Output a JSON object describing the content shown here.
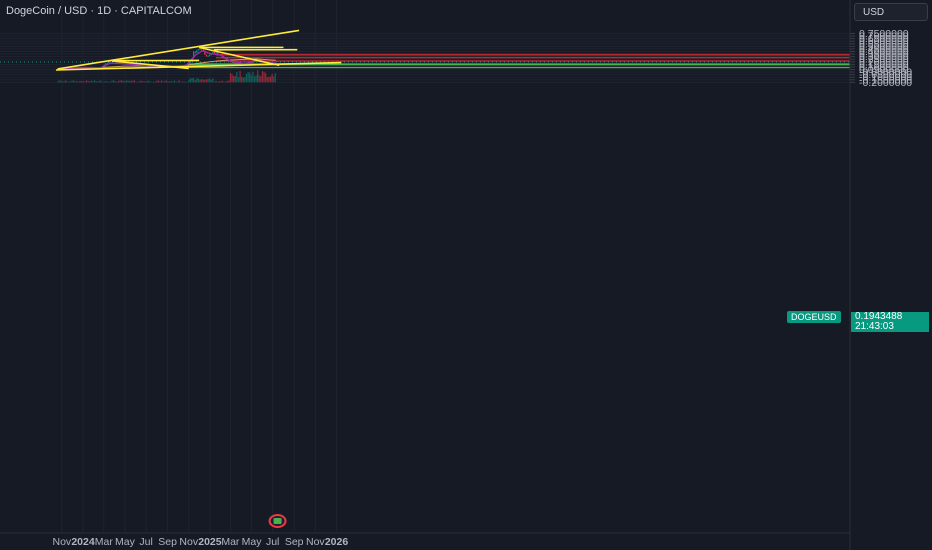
{
  "header": {
    "symbol_title": "DogeCoin / USD · 1D · CAPITALCOM",
    "currency_label": "USD"
  },
  "price_tag": {
    "symbol": "DOGEUSD",
    "price": "0.1943488",
    "countdown": "21:43:03",
    "color": "#089981"
  },
  "colors": {
    "background": "#161a25",
    "axis_text": "#b2b5be",
    "trendline": "#ffeb3b",
    "resistance_zone": "#b22833",
    "support_zone": "#4caf50",
    "candle_up": "#089981",
    "candle_down": "#f23645",
    "ma_fast": "#9c27b0",
    "ma_slow": "#c8a35a"
  },
  "chart_data": {
    "type": "candlestick",
    "title": "DogeCoin / USD · 1D · CAPITALCOM",
    "y_ticks": [
      "0.7500000",
      "0.7000000",
      "0.6500000",
      "0.6000000",
      "0.5500000",
      "0.5000000",
      "0.4500000",
      "0.4000000",
      "0.3500000",
      "0.3000000",
      "0.2500000",
      "0.2000000",
      "0.1500000",
      "0.1000000",
      "0.0500000",
      "-0.0000000",
      "-0.0500000",
      "-0.1000000",
      "-0.1500000",
      "-0.2000000"
    ],
    "y_tick_values": [
      0.75,
      0.7,
      0.65,
      0.6,
      0.55,
      0.5,
      0.45,
      0.4,
      0.35,
      0.3,
      0.25,
      0.2,
      0.15,
      0.1,
      0.05,
      0.0,
      -0.05,
      -0.1,
      -0.15,
      -0.2
    ],
    "ylim": [
      -0.205,
      0.8
    ],
    "x_ticks": [
      "Nov",
      "2024",
      "Mar",
      "May",
      "Jul",
      "Sep",
      "Nov",
      "2025",
      "Mar",
      "May",
      "Jul",
      "Sep",
      "Nov",
      "2026"
    ],
    "x_tick_dates": [
      "2023-11-01",
      "2024-01-01",
      "2024-03-01",
      "2024-05-01",
      "2024-07-01",
      "2024-09-01",
      "2024-11-01",
      "2025-01-01",
      "2025-03-01",
      "2025-05-01",
      "2025-07-01",
      "2025-09-01",
      "2025-11-01",
      "2026-01-01"
    ],
    "bold_ticks": [
      "2024",
      "2025",
      "2026"
    ],
    "price_path": [
      [
        "2023-10-20",
        0.058
      ],
      [
        "2023-11-15",
        0.075
      ],
      [
        "2023-12-10",
        0.093
      ],
      [
        "2024-01-05",
        0.082
      ],
      [
        "2024-02-05",
        0.08
      ],
      [
        "2024-02-25",
        0.095
      ],
      [
        "2024-03-05",
        0.165
      ],
      [
        "2024-03-15",
        0.205
      ],
      [
        "2024-03-28",
        0.22
      ],
      [
        "2024-04-05",
        0.215
      ],
      [
        "2024-04-20",
        0.16
      ],
      [
        "2024-05-01",
        0.155
      ],
      [
        "2024-05-25",
        0.16
      ],
      [
        "2024-06-15",
        0.13
      ],
      [
        "2024-07-05",
        0.108
      ],
      [
        "2024-07-25",
        0.135
      ],
      [
        "2024-08-10",
        0.105
      ],
      [
        "2024-09-06",
        0.097
      ],
      [
        "2024-09-25",
        0.12
      ],
      [
        "2024-10-15",
        0.118
      ],
      [
        "2024-10-30",
        0.165
      ],
      [
        "2024-11-08",
        0.23
      ],
      [
        "2024-11-15",
        0.38
      ],
      [
        "2024-11-25",
        0.42
      ],
      [
        "2024-12-05",
        0.47
      ],
      [
        "2024-12-12",
        0.43
      ],
      [
        "2024-12-20",
        0.32
      ],
      [
        "2024-12-31",
        0.32
      ],
      [
        "2025-01-10",
        0.39
      ],
      [
        "2025-01-20",
        0.38
      ],
      [
        "2025-01-30",
        0.33
      ],
      [
        "2025-02-05",
        0.28
      ],
      [
        "2025-02-15",
        0.27
      ],
      [
        "2025-02-25",
        0.21
      ],
      [
        "2025-03-10",
        0.19
      ],
      [
        "2025-03-25",
        0.175
      ],
      [
        "2025-04-07",
        0.15
      ],
      [
        "2025-04-25",
        0.175
      ],
      [
        "2025-05-05",
        0.19
      ],
      [
        "2025-05-12",
        0.245
      ],
      [
        "2025-05-25",
        0.23
      ],
      [
        "2025-06-05",
        0.195
      ],
      [
        "2025-06-20",
        0.16
      ],
      [
        "2025-06-28",
        0.16
      ],
      [
        "2025-07-07",
        0.175
      ],
      [
        "2025-07-10",
        0.194
      ]
    ],
    "ma_fast": [
      [
        "2023-10-20",
        0.06
      ],
      [
        "2024-01-01",
        0.088
      ],
      [
        "2024-02-20",
        0.085
      ],
      [
        "2024-03-20",
        0.175
      ],
      [
        "2024-05-01",
        0.16
      ],
      [
        "2024-07-01",
        0.125
      ],
      [
        "2024-09-01",
        0.108
      ],
      [
        "2024-10-25",
        0.13
      ],
      [
        "2024-11-20",
        0.33
      ],
      [
        "2024-12-10",
        0.415
      ],
      [
        "2025-01-01",
        0.36
      ],
      [
        "2025-02-01",
        0.33
      ],
      [
        "2025-03-01",
        0.215
      ],
      [
        "2025-04-10",
        0.168
      ],
      [
        "2025-05-20",
        0.22
      ],
      [
        "2025-06-20",
        0.175
      ],
      [
        "2025-07-10",
        0.18
      ]
    ],
    "ma_slow": [
      [
        "2023-11-01",
        0.068
      ],
      [
        "2024-02-01",
        0.08
      ],
      [
        "2024-05-01",
        0.115
      ],
      [
        "2024-08-01",
        0.12
      ],
      [
        "2024-10-15",
        0.118
      ],
      [
        "2024-11-20",
        0.16
      ],
      [
        "2025-01-01",
        0.2
      ],
      [
        "2025-02-15",
        0.23
      ],
      [
        "2025-04-01",
        0.245
      ],
      [
        "2025-05-15",
        0.255
      ],
      [
        "2025-06-15",
        0.24
      ],
      [
        "2025-07-10",
        0.23
      ]
    ],
    "trendlines": [
      [
        [
          "2023-10-20",
          0.06
        ],
        [
          "2025-09-15",
          0.81
        ]
      ],
      [
        [
          "2023-10-15",
          0.04
        ],
        [
          "2026-01-15",
          0.185
        ]
      ],
      [
        [
          "2024-03-25",
          0.215
        ],
        [
          "2024-11-01",
          0.07
        ]
      ],
      [
        [
          "2024-03-25",
          0.222
        ],
        [
          "2024-12-01",
          0.225
        ]
      ],
      [
        [
          "2024-12-01",
          0.478
        ],
        [
          "2025-07-20",
          0.13
        ]
      ],
      [
        [
          "2024-12-01",
          0.478
        ],
        [
          "2025-08-01",
          0.48
        ]
      ],
      [
        [
          "2025-01-12",
          0.433
        ],
        [
          "2025-09-10",
          0.435
        ]
      ]
    ],
    "resistance_zones": [
      [
        0.33,
        0.345
      ],
      [
        0.275,
        0.285
      ],
      [
        0.21,
        0.22
      ]
    ],
    "support_zones": [
      [
        0.15,
        0.16
      ],
      [
        0.14,
        0.15
      ],
      [
        0.085,
        0.09
      ]
    ],
    "volume_base": -0.2,
    "volume_max": 0.045
  }
}
